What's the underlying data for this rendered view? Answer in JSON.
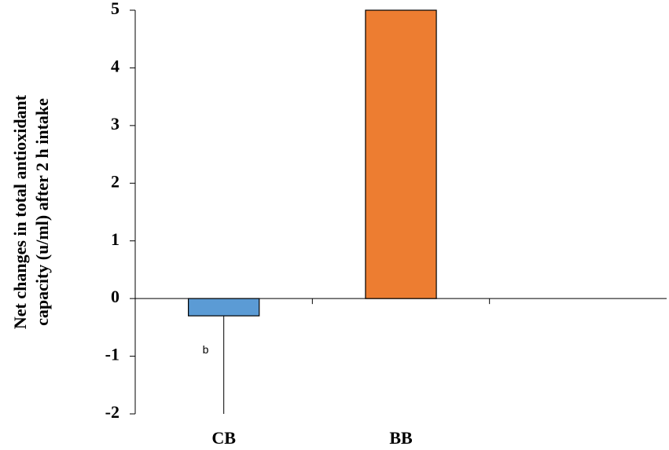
{
  "chart_data": {
    "type": "bar",
    "y_label": [
      "Net changes in total antioxidant",
      "capacity (u/ml) after 2 h intake"
    ],
    "categories": [
      "CB",
      "BB",
      null
    ],
    "values": [
      -0.3,
      5,
      null
    ],
    "errors": [
      1.7,
      null,
      null
    ],
    "colors": [
      "#5b9bd5",
      "#ed7d31",
      null
    ],
    "annotations": [
      {
        "text": "b",
        "category": 0,
        "y": -0.9
      }
    ],
    "ylim": [
      -2,
      5
    ],
    "yticks": [
      -2,
      -1,
      0,
      1,
      2,
      3,
      4,
      5
    ],
    "grid": false
  }
}
